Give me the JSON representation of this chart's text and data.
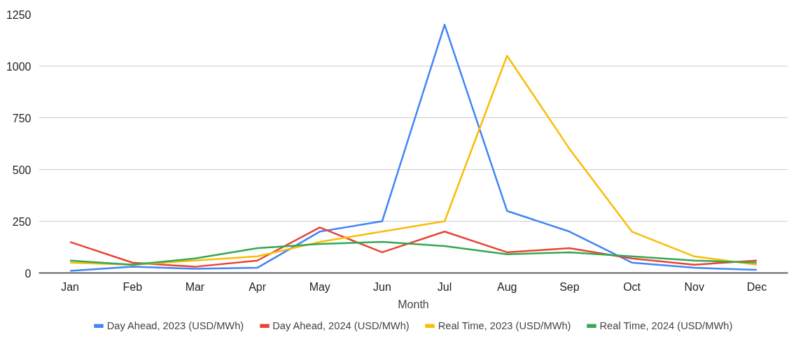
{
  "chart_data": {
    "type": "line",
    "xlabel": "Month",
    "categories": [
      "Jan",
      "Feb",
      "Mar",
      "Apr",
      "May",
      "Jun",
      "Jul",
      "Aug",
      "Sep",
      "Oct",
      "Nov",
      "Dec"
    ],
    "series": [
      {
        "name": "Day Ahead, 2023 (USD/MWh)",
        "color": "#4285f4",
        "values": [
          10,
          30,
          20,
          25,
          200,
          250,
          1200,
          300,
          200,
          50,
          25,
          15
        ]
      },
      {
        "name": "Day Ahead, 2024 (USD/MWh)",
        "color": "#ea4335",
        "values": [
          150,
          50,
          30,
          60,
          220,
          100,
          200,
          100,
          120,
          70,
          40,
          60
        ]
      },
      {
        "name": "Real Time, 2023 (USD/MWh)",
        "color": "#fbbc04",
        "values": [
          50,
          40,
          60,
          80,
          150,
          200,
          250,
          1050,
          600,
          200,
          80,
          40
        ]
      },
      {
        "name": "Real Time, 2024 (USD/MWh)",
        "color": "#34a853",
        "values": [
          60,
          40,
          70,
          120,
          140,
          150,
          130,
          90,
          100,
          80,
          60,
          50
        ]
      }
    ],
    "ylim": [
      0,
      1250
    ],
    "yticks": [
      0,
      250,
      500,
      750,
      1000,
      1250
    ],
    "grid": "y",
    "legend": "bottom",
    "marker": "none",
    "line_style": "solid"
  }
}
